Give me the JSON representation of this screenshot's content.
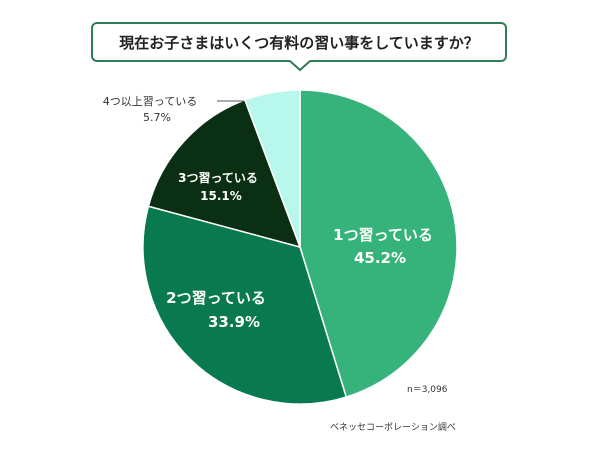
{
  "chart_data": {
    "type": "pie",
    "title": "現在お子さまはいくつ有料の習い事をしていますか？",
    "slices": [
      {
        "label": "1つ習っている",
        "value": 45.2,
        "value_label": "45.2%",
        "color": "#36b37a"
      },
      {
        "label": "2つ習っている",
        "value": 33.9,
        "value_label": "33.9%",
        "color": "#097a4f"
      },
      {
        "label": "3つ習っている",
        "value": 15.1,
        "value_label": "15.1%",
        "color": "#0a2f12"
      },
      {
        "label": "4つ以上習っている",
        "value": 5.7,
        "value_label": "5.7%",
        "color": "#b7f7ec"
      }
    ],
    "start": "12 o'clock",
    "direction": "clockwise",
    "legend": "none",
    "note": "n＝3,096",
    "source": "ベネッセコーポレーション調べ"
  }
}
